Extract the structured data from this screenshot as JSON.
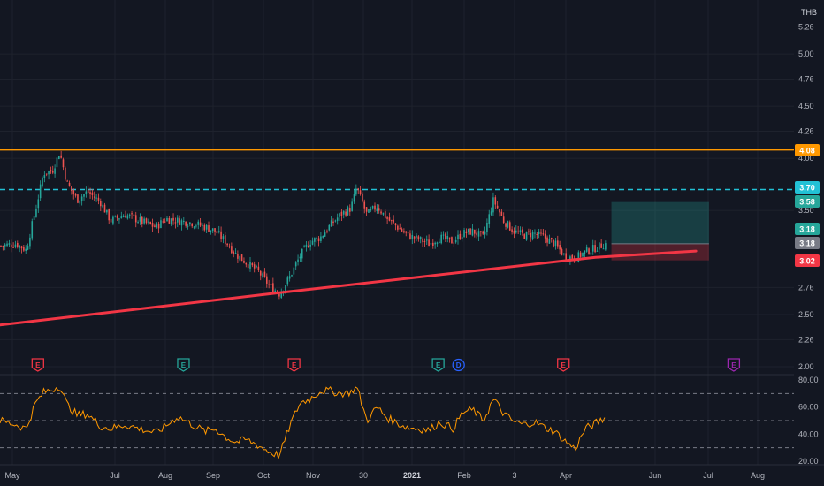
{
  "currency": "THB",
  "chart_data": [
    {
      "type": "candlestick",
      "title": "",
      "currency": "THB",
      "ylim": [
        2.0,
        5.26
      ],
      "y_ticks": [
        "5.26",
        "5.00",
        "4.76",
        "4.50",
        "4.26",
        "4.00",
        "3.50",
        "2.76",
        "2.50",
        "2.26",
        "2.00"
      ],
      "x_ticks": [
        "May",
        "Jul",
        "Aug",
        "Sep",
        "Oct",
        "Nov",
        "30",
        "2021",
        "Feb",
        "3",
        "Apr",
        "Jun",
        "Jul",
        "Aug"
      ],
      "close_path": [
        [
          "2020-04-20",
          3.16
        ],
        [
          "2020-05-01",
          3.18
        ],
        [
          "2020-05-08",
          3.12
        ],
        [
          "2020-05-14",
          3.48
        ],
        [
          "2020-05-20",
          3.86
        ],
        [
          "2020-05-26",
          3.88
        ],
        [
          "2020-05-31",
          4.06
        ],
        [
          "2020-06-05",
          3.76
        ],
        [
          "2020-06-12",
          3.6
        ],
        [
          "2020-06-19",
          3.68
        ],
        [
          "2020-06-28",
          3.58
        ],
        [
          "2020-07-05",
          3.4
        ],
        [
          "2020-07-15",
          3.46
        ],
        [
          "2020-07-25",
          3.4
        ],
        [
          "2020-08-05",
          3.34
        ],
        [
          "2020-08-12",
          3.42
        ],
        [
          "2020-08-20",
          3.4
        ],
        [
          "2020-08-30",
          3.38
        ],
        [
          "2020-09-08",
          3.34
        ],
        [
          "2020-09-15",
          3.3
        ],
        [
          "2020-09-22",
          3.2
        ],
        [
          "2020-09-29",
          3.08
        ],
        [
          "2020-10-06",
          3.0
        ],
        [
          "2020-10-14",
          2.92
        ],
        [
          "2020-10-22",
          2.78
        ],
        [
          "2020-10-29",
          2.7
        ],
        [
          "2020-11-05",
          2.86
        ],
        [
          "2020-11-12",
          3.06
        ],
        [
          "2020-11-19",
          3.2
        ],
        [
          "2020-11-26",
          3.24
        ],
        [
          "2020-12-03",
          3.36
        ],
        [
          "2020-12-10",
          3.46
        ],
        [
          "2020-12-17",
          3.52
        ],
        [
          "2020-12-21",
          3.72
        ],
        [
          "2020-12-28",
          3.46
        ],
        [
          "2021-01-04",
          3.54
        ],
        [
          "2021-01-11",
          3.42
        ],
        [
          "2021-01-18",
          3.34
        ],
        [
          "2021-01-25",
          3.26
        ],
        [
          "2021-02-02",
          3.22
        ],
        [
          "2021-02-09",
          3.18
        ],
        [
          "2021-02-16",
          3.24
        ],
        [
          "2021-02-25",
          3.2
        ],
        [
          "2021-03-04",
          3.28
        ],
        [
          "2021-03-11",
          3.3
        ],
        [
          "2021-03-18",
          3.24
        ],
        [
          "2021-03-25",
          3.6
        ],
        [
          "2021-04-01",
          3.4
        ],
        [
          "2021-04-08",
          3.3
        ],
        [
          "2021-04-15",
          3.26
        ],
        [
          "2021-04-22",
          3.28
        ],
        [
          "2021-04-29",
          3.24
        ],
        [
          "2021-05-06",
          3.18
        ],
        [
          "2021-05-13",
          3.06
        ],
        [
          "2021-05-20",
          3.04
        ],
        [
          "2021-05-27",
          3.1
        ],
        [
          "2021-06-03",
          3.14
        ],
        [
          "2021-06-10",
          3.18
        ]
      ],
      "horizontal_levels": [
        {
          "value": 4.08,
          "label": "4.08",
          "style": "solid",
          "color": "#ff9800"
        },
        {
          "value": 3.7,
          "label": "3.70",
          "style": "dashed",
          "color": "#22c1d6"
        }
      ],
      "price_labels": [
        {
          "label": "4.08",
          "value": 4.08,
          "color": "#ff9800"
        },
        {
          "label": "3.70",
          "value": 3.7,
          "color": "#22c1d6"
        },
        {
          "label": "3.58",
          "value": 3.58,
          "color": "#26a69a"
        },
        {
          "label": "3.18",
          "value": 3.18,
          "color": "#26a69a"
        },
        {
          "label": "3.18",
          "value": 3.18,
          "color": "#787b86"
        },
        {
          "label": "3.02",
          "value": 3.02,
          "color": "#f23645"
        }
      ],
      "trendline": {
        "color": "#f23645",
        "points": [
          [
            "2020-04-20",
            2.4
          ],
          [
            "2020-10-29",
            2.71
          ],
          [
            "2021-06-03",
            3.05
          ],
          [
            "2021-08-11",
            3.11
          ]
        ]
      },
      "position_box": {
        "start": "2021-06-14",
        "end": "2021-08-20",
        "entry": 3.18,
        "target": 3.58,
        "stop": 3.02
      },
      "event_markers": [
        {
          "date": "2020-05-16",
          "label": "E",
          "color": "#f23645"
        },
        {
          "date": "2020-08-24",
          "label": "E",
          "color": "#26a69a"
        },
        {
          "date": "2020-11-08",
          "label": "E",
          "color": "#f23645"
        },
        {
          "date": "2021-02-15",
          "label": "E",
          "color": "#26a69a"
        },
        {
          "date": "2021-02-29",
          "label": "D",
          "color": "#2962ff"
        },
        {
          "date": "2021-05-12",
          "label": "E",
          "color": "#f23645"
        },
        {
          "date": "2021-09-06",
          "label": "E",
          "color": "#9c27b0"
        }
      ]
    },
    {
      "type": "line",
      "title": "",
      "ylim": [
        20,
        80
      ],
      "y_ticks": [
        "80.00",
        "60.00",
        "40.00",
        "20.00"
      ],
      "bands": [
        70,
        50,
        30
      ],
      "series": [
        {
          "color": "#ff9800",
          "values": [
            [
              "2020-04-20",
              50
            ],
            [
              "2020-05-01",
              47
            ],
            [
              "2020-05-08",
              44
            ],
            [
              "2020-05-14",
              62
            ],
            [
              "2020-05-20",
              71
            ],
            [
              "2020-05-26",
              73
            ],
            [
              "2020-05-31",
              76
            ],
            [
              "2020-06-05",
              62
            ],
            [
              "2020-06-12",
              54
            ],
            [
              "2020-06-19",
              55
            ],
            [
              "2020-06-28",
              46
            ],
            [
              "2020-07-05",
              44
            ],
            [
              "2020-07-15",
              47
            ],
            [
              "2020-07-25",
              44
            ],
            [
              "2020-08-05",
              41
            ],
            [
              "2020-08-12",
              46
            ],
            [
              "2020-08-20",
              53
            ],
            [
              "2020-08-30",
              47
            ],
            [
              "2020-09-08",
              42
            ],
            [
              "2020-09-15",
              44
            ],
            [
              "2020-09-22",
              38
            ],
            [
              "2020-09-29",
              34
            ],
            [
              "2020-10-06",
              36
            ],
            [
              "2020-10-14",
              32
            ],
            [
              "2020-10-22",
              27
            ],
            [
              "2020-10-29",
              24
            ],
            [
              "2020-11-05",
              46
            ],
            [
              "2020-11-12",
              63
            ],
            [
              "2020-11-19",
              66
            ],
            [
              "2020-11-26",
              72
            ],
            [
              "2020-12-03",
              72
            ],
            [
              "2020-12-10",
              70
            ],
            [
              "2020-12-17",
              71
            ],
            [
              "2020-12-21",
              75
            ],
            [
              "2020-12-28",
              50
            ],
            [
              "2021-01-04",
              60
            ],
            [
              "2021-01-11",
              52
            ],
            [
              "2021-01-18",
              48
            ],
            [
              "2021-01-25",
              45
            ],
            [
              "2021-02-02",
              44
            ],
            [
              "2021-02-09",
              43
            ],
            [
              "2021-02-16",
              49
            ],
            [
              "2021-02-25",
              44
            ],
            [
              "2021-03-04",
              56
            ],
            [
              "2021-03-11",
              58
            ],
            [
              "2021-03-18",
              50
            ],
            [
              "2021-03-25",
              66
            ],
            [
              "2021-04-01",
              55
            ],
            [
              "2021-04-08",
              49
            ],
            [
              "2021-04-15",
              47
            ],
            [
              "2021-04-22",
              49
            ],
            [
              "2021-04-29",
              45
            ],
            [
              "2021-05-06",
              42
            ],
            [
              "2021-05-13",
              35
            ],
            [
              "2021-05-20",
              29
            ],
            [
              "2021-05-27",
              44
            ],
            [
              "2021-06-03",
              48
            ],
            [
              "2021-06-10",
              52
            ]
          ]
        }
      ]
    }
  ]
}
